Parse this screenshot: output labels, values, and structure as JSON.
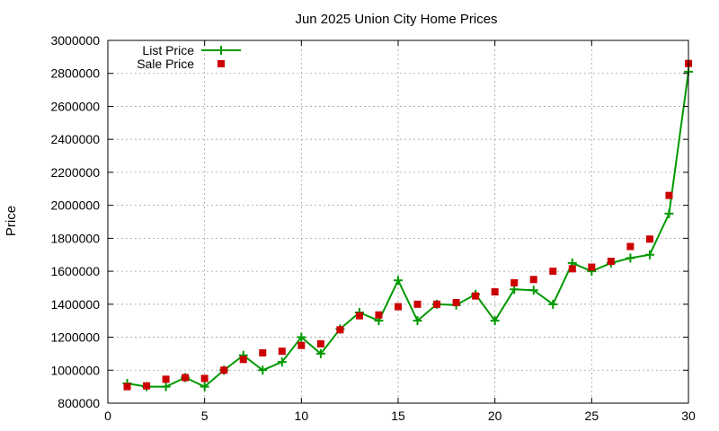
{
  "chart_data": {
    "type": "line",
    "title": "Jun 2025 Union City Home Prices",
    "xlabel": "",
    "ylabel": "Price",
    "xlim": [
      0,
      30
    ],
    "ylim": [
      800000,
      3000000
    ],
    "x_ticks": [
      0,
      5,
      10,
      15,
      20,
      25,
      30
    ],
    "y_ticks": [
      800000,
      1000000,
      1200000,
      1400000,
      1600000,
      1800000,
      2000000,
      2200000,
      2400000,
      2600000,
      2800000,
      3000000
    ],
    "grid": true,
    "legend_position": "top-left",
    "x": [
      1,
      2,
      3,
      4,
      5,
      6,
      7,
      8,
      9,
      10,
      11,
      12,
      13,
      14,
      15,
      16,
      17,
      18,
      19,
      20,
      21,
      22,
      23,
      24,
      25,
      26,
      27,
      28,
      29,
      30
    ],
    "series": [
      {
        "name": "List Price",
        "kind": "line-with-plus-markers",
        "color": "#009900",
        "values": [
          920000,
          900000,
          900000,
          955000,
          900000,
          1000000,
          1090000,
          1000000,
          1050000,
          1200000,
          1100000,
          1250000,
          1350000,
          1300000,
          1545000,
          1300000,
          1400000,
          1395000,
          1460000,
          1300000,
          1490000,
          1485000,
          1400000,
          1650000,
          1600000,
          1650000,
          1680000,
          1700000,
          1950000,
          2810000
        ]
      },
      {
        "name": "Sale Price",
        "kind": "square-markers",
        "color": "#cc0000",
        "values": [
          900000,
          905000,
          945000,
          955000,
          950000,
          1000000,
          1065000,
          1105000,
          1115000,
          1150000,
          1160000,
          1245000,
          1330000,
          1335000,
          1385000,
          1400000,
          1400000,
          1410000,
          1450000,
          1475000,
          1530000,
          1550000,
          1600000,
          1615000,
          1625000,
          1660000,
          1750000,
          1795000,
          2060000,
          2860000
        ]
      }
    ]
  }
}
